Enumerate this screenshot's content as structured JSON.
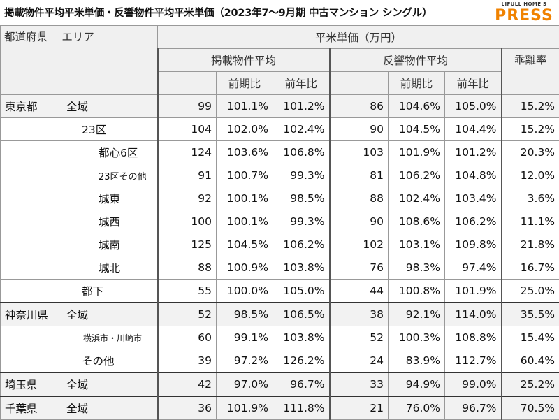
{
  "title": "掲載物件平均平米単価・反響物件平均平米単価（2023年7〜9月期 中古マンション シングル）",
  "logo": {
    "top": "LIFULL HOME'S",
    "main": "PRESS"
  },
  "header": {
    "area_label": "都道府県　 エリア",
    "price_label": "平米単価（万円）",
    "listed_avg": "掲載物件平均",
    "response_avg": "反響物件平均",
    "gap_rate": "乖離率",
    "qoq": "前期比",
    "yoy": "前年比"
  },
  "rows": [
    {
      "pref": "東京都",
      "area": "全域",
      "l": "99",
      "lq": "101.1%",
      "ly": "101.2%",
      "r": "86",
      "rq": "104.6%",
      "ry": "105.0%",
      "g": "15.2%"
    },
    {
      "pref": "",
      "area": "23区",
      "l": "104",
      "lq": "102.0%",
      "ly": "102.4%",
      "r": "90",
      "rq": "104.5%",
      "ry": "104.4%",
      "g": "15.2%"
    },
    {
      "pref": "",
      "area": "都心6区",
      "l": "124",
      "lq": "103.6%",
      "ly": "106.8%",
      "r": "103",
      "rq": "101.9%",
      "ry": "101.2%",
      "g": "20.3%"
    },
    {
      "pref": "",
      "area": "23区その他",
      "l": "91",
      "lq": "100.7%",
      "ly": "99.3%",
      "r": "81",
      "rq": "106.2%",
      "ry": "104.8%",
      "g": "12.0%"
    },
    {
      "pref": "",
      "area": "城東",
      "l": "92",
      "lq": "100.1%",
      "ly": "98.5%",
      "r": "88",
      "rq": "102.4%",
      "ry": "103.4%",
      "g": "3.6%"
    },
    {
      "pref": "",
      "area": "城西",
      "l": "100",
      "lq": "100.1%",
      "ly": "99.3%",
      "r": "90",
      "rq": "108.6%",
      "ry": "106.2%",
      "g": "11.1%"
    },
    {
      "pref": "",
      "area": "城南",
      "l": "125",
      "lq": "104.5%",
      "ly": "106.2%",
      "r": "102",
      "rq": "103.1%",
      "ry": "109.8%",
      "g": "21.8%"
    },
    {
      "pref": "",
      "area": "城北",
      "l": "88",
      "lq": "100.9%",
      "ly": "103.8%",
      "r": "76",
      "rq": "98.3%",
      "ry": "97.4%",
      "g": "16.7%"
    },
    {
      "pref": "",
      "area": "都下",
      "l": "55",
      "lq": "100.0%",
      "ly": "105.0%",
      "r": "44",
      "rq": "100.8%",
      "ry": "101.9%",
      "g": "25.0%"
    },
    {
      "pref": "神奈川県",
      "area": "全域",
      "l": "52",
      "lq": "98.5%",
      "ly": "106.5%",
      "r": "38",
      "rq": "92.1%",
      "ry": "114.0%",
      "g": "35.5%"
    },
    {
      "pref": "",
      "area": "横浜市・川崎市",
      "l": "60",
      "lq": "99.1%",
      "ly": "103.8%",
      "r": "52",
      "rq": "100.3%",
      "ry": "108.8%",
      "g": "15.4%"
    },
    {
      "pref": "",
      "area": "その他",
      "l": "39",
      "lq": "97.2%",
      "ly": "126.2%",
      "r": "24",
      "rq": "83.9%",
      "ry": "112.7%",
      "g": "60.4%"
    },
    {
      "pref": "埼玉県",
      "area": "全域",
      "l": "42",
      "lq": "97.0%",
      "ly": "96.7%",
      "r": "33",
      "rq": "94.9%",
      "ry": "99.0%",
      "g": "25.2%"
    },
    {
      "pref": "千葉県",
      "area": "全域",
      "l": "36",
      "lq": "101.9%",
      "ly": "111.8%",
      "r": "21",
      "rq": "76.0%",
      "ry": "96.7%",
      "g": "70.5%"
    }
  ]
}
